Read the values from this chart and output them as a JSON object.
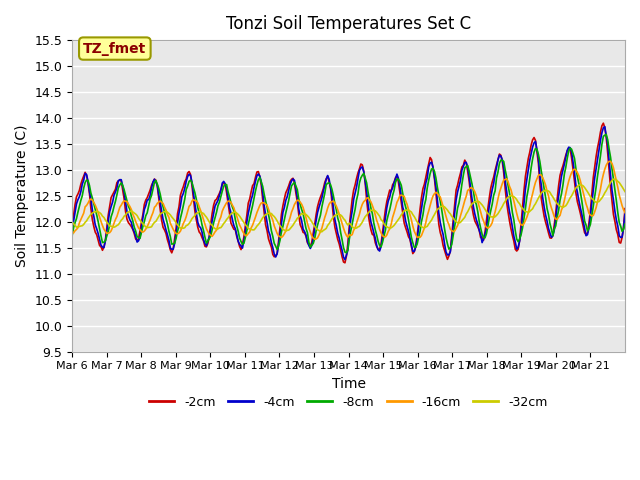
{
  "title": "Tonzi Soil Temperatures Set C",
  "xlabel": "Time",
  "ylabel": "Soil Temperature (C)",
  "ylim": [
    9.5,
    15.5
  ],
  "series_colors": {
    "-2cm": "#cc0000",
    "-4cm": "#0000cc",
    "-8cm": "#00aa00",
    "-16cm": "#ff9900",
    "-32cm": "#cccc00"
  },
  "legend_label": "TZ_fmet",
  "legend_box_color": "#ffff99",
  "legend_box_border": "#999900",
  "x_tick_labels": [
    "Mar 6",
    "Mar 7",
    "Mar 8",
    "Mar 9",
    "Mar 10",
    "Mar 11",
    "Mar 12",
    "Mar 13",
    "Mar 14",
    "Mar 15",
    "Mar 16",
    "Mar 17",
    "Mar 18",
    "Mar 19",
    "Mar 20",
    "Mar 21"
  ],
  "plot_bg_color": "#e8e8e8",
  "grid_color": "#ffffff",
  "line_width": 1.2
}
